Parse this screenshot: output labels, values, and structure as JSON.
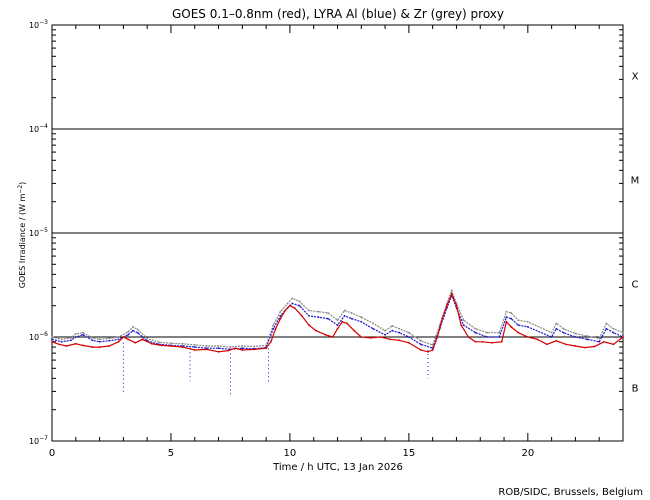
{
  "chart_data": {
    "type": "line",
    "title": "GOES 0.1–0.8nm (red), LYRA Al (blue) & Zr (grey) proxy",
    "xlabel": "Time / h UTC, 13 Jan 2026",
    "ylabel": "GOES Irradiance / (W m",
    "ylabel_exp": "−2",
    "ylabel_close": ")",
    "credit": "ROB/SIDC, Brussels, Belgium",
    "x_range": [
      0,
      24
    ],
    "y_range": [
      1e-07,
      0.001
    ],
    "y_scale": "log",
    "x_ticks": [
      0,
      5,
      10,
      15,
      20
    ],
    "y_ticks": [
      {
        "value": 1e-07,
        "base": "10",
        "exp": "−7"
      },
      {
        "value": 1e-06,
        "base": "10",
        "exp": "−6"
      },
      {
        "value": 1e-05,
        "base": "10",
        "exp": "−5"
      },
      {
        "value": 0.0001,
        "base": "10",
        "exp": "−4"
      },
      {
        "value": 0.001,
        "base": "10",
        "exp": "−3"
      }
    ],
    "class_thresholds": [
      1e-06,
      1e-05,
      0.0001
    ],
    "flare_classes": [
      {
        "label": "B",
        "y": 3.2e-07
      },
      {
        "label": "C",
        "y": 3.2e-06
      },
      {
        "label": "M",
        "y": 3.2e-05
      },
      {
        "label": "X",
        "y": 0.00032
      }
    ],
    "series": [
      {
        "color": "#d40000",
        "x": [
          0,
          0.3,
          0.6,
          1.0,
          1.3,
          1.7,
          2.0,
          2.4,
          2.8,
          3.0,
          3.2,
          3.5,
          3.8,
          4.2,
          4.6,
          5.0,
          5.5,
          6.0,
          6.5,
          7.0,
          7.4,
          7.7,
          8.0,
          8.5,
          9.0,
          9.2,
          9.4,
          9.6,
          9.8,
          10.0,
          10.2,
          10.5,
          10.8,
          11.1,
          11.5,
          11.8,
          12.0,
          12.2,
          12.4,
          12.7,
          13.0,
          13.4,
          13.8,
          14.2,
          14.6,
          15.0,
          15.5,
          15.8,
          16.0,
          16.2,
          16.4,
          16.6,
          16.8,
          17.0,
          17.2,
          17.5,
          17.8,
          18.1,
          18.5,
          18.9,
          19.1,
          19.3,
          19.6,
          20.0,
          20.4,
          20.8,
          21.2,
          21.6,
          22.0,
          22.4,
          22.8,
          23.2,
          23.6,
          24.0
        ],
        "y": [
          9e-07,
          8.5e-07,
          8.2e-07,
          8.6e-07,
          8.3e-07,
          8e-07,
          8e-07,
          8.2e-07,
          9e-07,
          1e-06,
          9.5e-07,
          8.8e-07,
          9.5e-07,
          8.6e-07,
          8.3e-07,
          8.2e-07,
          8e-07,
          7.5e-07,
          7.6e-07,
          7.2e-07,
          7.4e-07,
          7.8e-07,
          7.5e-07,
          7.6e-07,
          7.8e-07,
          9e-07,
          1.2e-06,
          1.5e-06,
          1.8e-06,
          2e-06,
          1.9e-06,
          1.6e-06,
          1.3e-06,
          1.15e-06,
          1.05e-06,
          1e-06,
          1.2e-06,
          1.4e-06,
          1.35e-06,
          1.15e-06,
          1e-06,
          9.8e-07,
          1e-06,
          9.5e-07,
          9.3e-07,
          8.8e-07,
          7.5e-07,
          7.2e-07,
          7.5e-07,
          1e-06,
          1.5e-06,
          2e-06,
          2.6e-06,
          2e-06,
          1.3e-06,
          1e-06,
          9e-07,
          9e-07,
          8.8e-07,
          9e-07,
          1.4e-06,
          1.25e-06,
          1.1e-06,
          1e-06,
          9.5e-07,
          8.5e-07,
          9.2e-07,
          8.5e-07,
          8.2e-07,
          7.9e-07,
          8.1e-07,
          9e-07,
          8.5e-07,
          1e-06
        ]
      },
      {
        "color": "#1a1acc",
        "x": [
          0,
          0.4,
          0.8,
          1.0,
          1.3,
          1.7,
          2.0,
          2.4,
          2.8,
          3.2,
          3.4,
          3.6,
          4.0,
          4.5,
          5.0,
          5.5,
          6.0,
          6.5,
          7.0,
          7.5,
          8.0,
          8.5,
          9.0,
          9.3,
          9.6,
          9.9,
          10.1,
          10.4,
          10.8,
          11.2,
          11.6,
          12.0,
          12.3,
          12.6,
          13.0,
          13.5,
          14.0,
          14.3,
          14.6,
          15.0,
          15.5,
          16.0,
          16.3,
          16.6,
          16.8,
          17.0,
          17.3,
          17.8,
          18.3,
          18.8,
          19.1,
          19.3,
          19.6,
          20.0,
          21.0,
          21.2,
          21.5,
          22.0,
          22.5,
          23.0,
          23.3,
          23.6,
          24.0
        ],
        "y": [
          9.5e-07,
          9e-07,
          9.3e-07,
          1e-06,
          1.05e-06,
          9.3e-07,
          9e-07,
          9.2e-07,
          9.5e-07,
          1.05e-06,
          1.15e-06,
          1.1e-06,
          9.2e-07,
          8.5e-07,
          8.3e-07,
          8.2e-07,
          8e-07,
          7.8e-07,
          7.8e-07,
          7.6e-07,
          7.8e-07,
          7.7e-07,
          7.9e-07,
          1.2e-06,
          1.6e-06,
          1.9e-06,
          2.1e-06,
          2e-06,
          1.6e-06,
          1.55e-06,
          1.5e-06,
          1.3e-06,
          1.6e-06,
          1.5e-06,
          1.4e-06,
          1.2e-06,
          1.05e-06,
          1.15e-06,
          1.1e-06,
          1e-06,
          8.5e-07,
          7.8e-07,
          1.2e-06,
          1.9e-06,
          2.5e-06,
          1.9e-06,
          1.3e-06,
          1.1e-06,
          1e-06,
          1e-06,
          1.55e-06,
          1.5e-06,
          1.3e-06,
          1.25e-06,
          1e-06,
          1.2e-06,
          1.1e-06,
          1e-06,
          9.5e-07,
          9e-07,
          1.2e-06,
          1.1e-06,
          1e-06
        ]
      },
      {
        "color": "#888888",
        "x": [
          0,
          0.4,
          0.8,
          1.0,
          1.3,
          1.7,
          2.0,
          2.4,
          2.8,
          3.2,
          3.4,
          3.6,
          4.0,
          4.5,
          5.0,
          5.5,
          6.0,
          6.5,
          7.0,
          7.5,
          8.0,
          8.5,
          9.0,
          9.3,
          9.6,
          9.9,
          10.1,
          10.4,
          10.8,
          11.2,
          11.6,
          12.0,
          12.3,
          12.6,
          13.0,
          13.5,
          14.0,
          14.3,
          14.6,
          15.0,
          15.5,
          16.0,
          16.3,
          16.6,
          16.8,
          17.0,
          17.3,
          17.8,
          18.3,
          18.8,
          19.1,
          19.3,
          19.6,
          20.0,
          21.0,
          21.2,
          21.5,
          22.0,
          22.5,
          23.0,
          23.3,
          23.6,
          24.0
        ],
        "y": [
          1e-06,
          9.5e-07,
          9.8e-07,
          1.07e-06,
          1.1e-06,
          9.8e-07,
          9.5e-07,
          9.7e-07,
          1e-06,
          1.12e-06,
          1.25e-06,
          1.18e-06,
          9.7e-07,
          8.9e-07,
          8.7e-07,
          8.6e-07,
          8.4e-07,
          8.2e-07,
          8.2e-07,
          8e-07,
          8.2e-07,
          8.1e-07,
          8.3e-07,
          1.3e-06,
          1.75e-06,
          2.1e-06,
          2.35e-06,
          2.2e-06,
          1.8e-06,
          1.75e-06,
          1.7e-06,
          1.45e-06,
          1.8e-06,
          1.7e-06,
          1.55e-06,
          1.35e-06,
          1.15e-06,
          1.28e-06,
          1.2e-06,
          1.1e-06,
          9.2e-07,
          8.4e-07,
          1.3e-06,
          2.1e-06,
          2.8e-06,
          2.1e-06,
          1.45e-06,
          1.2e-06,
          1.1e-06,
          1.1e-06,
          1.75e-06,
          1.7e-06,
          1.45e-06,
          1.4e-06,
          1.1e-06,
          1.35e-06,
          1.2e-06,
          1.08e-06,
          1.02e-06,
          9.7e-07,
          1.35e-06,
          1.2e-06,
          1.1e-06
        ]
      }
    ],
    "dropouts": [
      {
        "x": 3.0,
        "y_top": 8.8e-07,
        "y_bottom": 2.8e-07
      },
      {
        "x": 5.8,
        "y_top": 7.8e-07,
        "y_bottom": 3.8e-07
      },
      {
        "x": 7.5,
        "y_top": 7.6e-07,
        "y_bottom": 2.7e-07
      },
      {
        "x": 9.1,
        "y_top": 7.8e-07,
        "y_bottom": 3.7e-07
      },
      {
        "x": 15.8,
        "y_top": 7.5e-07,
        "y_bottom": 4e-07
      }
    ]
  }
}
